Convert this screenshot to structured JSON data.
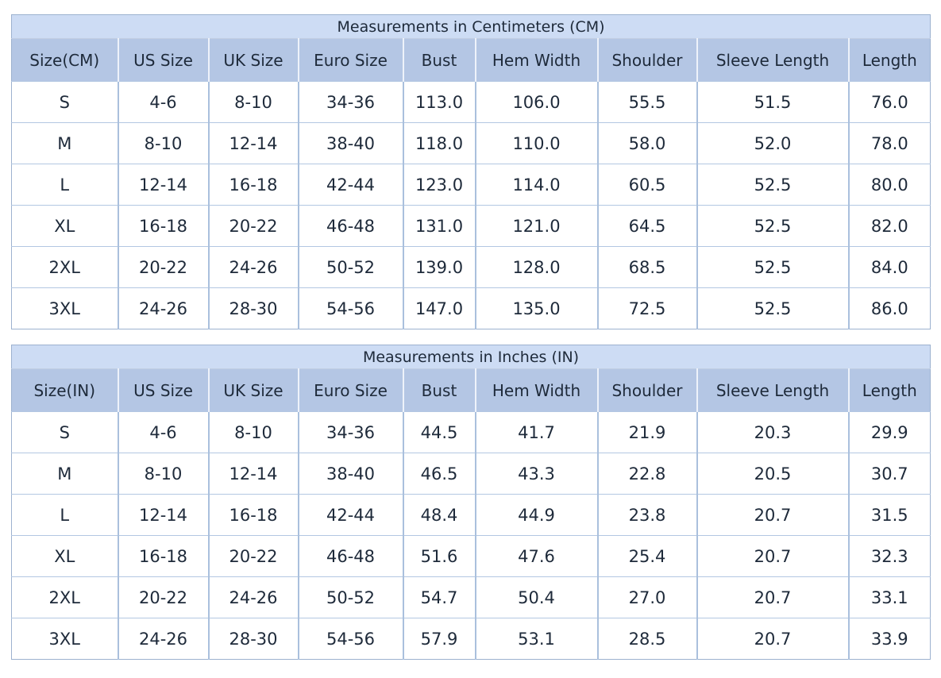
{
  "colors": {
    "title_bg": "#cddcf4",
    "header_bg": "#b4c6e4",
    "text": "#1e2a3a",
    "outer_border": "#9db2cf",
    "title_divider": "#c2cfe3",
    "header_divider": "#eef2fa",
    "row_divider": "#b3c7e2",
    "col_divider": "#aac0dd"
  },
  "tables": [
    {
      "title": "Measurements in Centimeters (CM)",
      "columns": [
        "Size(CM)",
        "US Size",
        "UK Size",
        "Euro Size",
        "Bust",
        "Hem Width",
        "Shoulder",
        "Sleeve Length",
        "Length"
      ],
      "rows": [
        [
          "S",
          "4-6",
          "8-10",
          "34-36",
          "113.0",
          "106.0",
          "55.5",
          "51.5",
          "76.0"
        ],
        [
          "M",
          "8-10",
          "12-14",
          "38-40",
          "118.0",
          "110.0",
          "58.0",
          "52.0",
          "78.0"
        ],
        [
          "L",
          "12-14",
          "16-18",
          "42-44",
          "123.0",
          "114.0",
          "60.5",
          "52.5",
          "80.0"
        ],
        [
          "XL",
          "16-18",
          "20-22",
          "46-48",
          "131.0",
          "121.0",
          "64.5",
          "52.5",
          "82.0"
        ],
        [
          "2XL",
          "20-22",
          "24-26",
          "50-52",
          "139.0",
          "128.0",
          "68.5",
          "52.5",
          "84.0"
        ],
        [
          "3XL",
          "24-26",
          "28-30",
          "54-56",
          "147.0",
          "135.0",
          "72.5",
          "52.5",
          "86.0"
        ]
      ]
    },
    {
      "title": "Measurements in Inches (IN)",
      "columns": [
        "Size(IN)",
        "US Size",
        "UK Size",
        "Euro Size",
        "Bust",
        "Hem Width",
        "Shoulder",
        "Sleeve Length",
        "Length"
      ],
      "rows": [
        [
          "S",
          "4-6",
          "8-10",
          "34-36",
          "44.5",
          "41.7",
          "21.9",
          "20.3",
          "29.9"
        ],
        [
          "M",
          "8-10",
          "12-14",
          "38-40",
          "46.5",
          "43.3",
          "22.8",
          "20.5",
          "30.7"
        ],
        [
          "L",
          "12-14",
          "16-18",
          "42-44",
          "48.4",
          "44.9",
          "23.8",
          "20.7",
          "31.5"
        ],
        [
          "XL",
          "16-18",
          "20-22",
          "46-48",
          "51.6",
          "47.6",
          "25.4",
          "20.7",
          "32.3"
        ],
        [
          "2XL",
          "20-22",
          "24-26",
          "50-52",
          "54.7",
          "50.4",
          "27.0",
          "20.7",
          "33.1"
        ],
        [
          "3XL",
          "24-26",
          "28-30",
          "54-56",
          "57.9",
          "53.1",
          "28.5",
          "20.7",
          "33.9"
        ]
      ]
    }
  ]
}
